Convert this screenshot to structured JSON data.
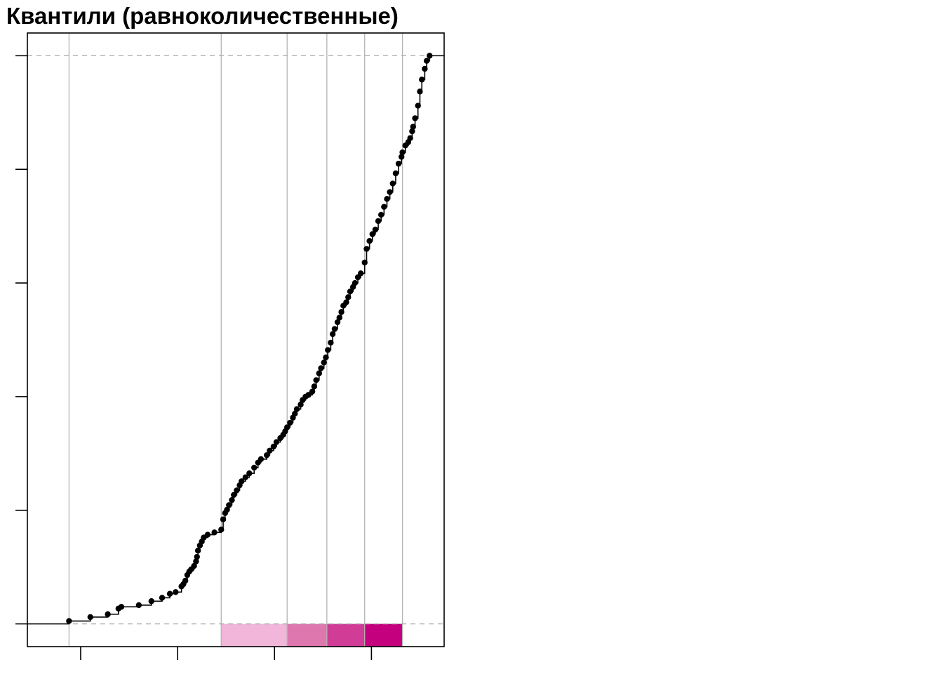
{
  "title": "Квантили (равноколичественные)",
  "chart_data": {
    "type": "scatter",
    "subtype": "empirical-cdf-with-quantile-breaks",
    "title": "Квантили (равноколичественные)",
    "xlabel": "",
    "ylabel": "",
    "x_tick_values": [
      10,
      20,
      30,
      40
    ],
    "y_tick_values": [
      0,
      0.2,
      0.4,
      0.6,
      0.8,
      1.0
    ],
    "tick_labels_visible": false,
    "xlim": [
      4.5,
      47.5
    ],
    "ylim": [
      -0.04,
      1.04
    ],
    "reference_lines_y": [
      0,
      1
    ],
    "quantile_breaks": [
      8.8,
      24.5,
      31.3,
      35.4,
      39.3,
      43.2
    ],
    "class_colors": [
      "#ffffff",
      "#f1b6da",
      "#de77ae",
      "#d03c96",
      "#c5007f"
    ],
    "curve_colors": {
      "points": "#000000",
      "line": "#000000",
      "breaks": "#b3b3b3",
      "reference": "#aaaaaa"
    },
    "points": [
      [
        8.8,
        0.005
      ],
      [
        11.0,
        0.012
      ],
      [
        12.8,
        0.017
      ],
      [
        13.9,
        0.027
      ],
      [
        14.2,
        0.03
      ],
      [
        16.0,
        0.033
      ],
      [
        17.3,
        0.04
      ],
      [
        18.4,
        0.046
      ],
      [
        19.2,
        0.053
      ],
      [
        19.8,
        0.056
      ],
      [
        20.4,
        0.066
      ],
      [
        20.6,
        0.07
      ],
      [
        20.8,
        0.076
      ],
      [
        21.0,
        0.086
      ],
      [
        21.2,
        0.092
      ],
      [
        21.4,
        0.096
      ],
      [
        21.7,
        0.102
      ],
      [
        21.9,
        0.11
      ],
      [
        22.0,
        0.118
      ],
      [
        22.1,
        0.129
      ],
      [
        22.3,
        0.138
      ],
      [
        22.5,
        0.145
      ],
      [
        22.7,
        0.152
      ],
      [
        23.1,
        0.157
      ],
      [
        23.8,
        0.161
      ],
      [
        24.5,
        0.166
      ],
      [
        24.7,
        0.184
      ],
      [
        24.9,
        0.195
      ],
      [
        25.1,
        0.201
      ],
      [
        25.3,
        0.209
      ],
      [
        25.6,
        0.218
      ],
      [
        25.8,
        0.227
      ],
      [
        26.1,
        0.235
      ],
      [
        26.4,
        0.244
      ],
      [
        26.6,
        0.251
      ],
      [
        27.0,
        0.258
      ],
      [
        27.4,
        0.265
      ],
      [
        27.9,
        0.275
      ],
      [
        28.3,
        0.284
      ],
      [
        28.6,
        0.29
      ],
      [
        29.2,
        0.297
      ],
      [
        29.5,
        0.305
      ],
      [
        29.9,
        0.312
      ],
      [
        30.2,
        0.32
      ],
      [
        30.6,
        0.327
      ],
      [
        30.9,
        0.333
      ],
      [
        31.1,
        0.339
      ],
      [
        31.3,
        0.346
      ],
      [
        31.6,
        0.354
      ],
      [
        31.9,
        0.363
      ],
      [
        32.1,
        0.37
      ],
      [
        32.3,
        0.378
      ],
      [
        32.7,
        0.386
      ],
      [
        32.9,
        0.394
      ],
      [
        33.2,
        0.4
      ],
      [
        33.5,
        0.403
      ],
      [
        33.9,
        0.409
      ],
      [
        34.1,
        0.418
      ],
      [
        34.3,
        0.429
      ],
      [
        34.6,
        0.441
      ],
      [
        34.8,
        0.45
      ],
      [
        35.1,
        0.46
      ],
      [
        35.3,
        0.469
      ],
      [
        35.5,
        0.482
      ],
      [
        35.8,
        0.495
      ],
      [
        36.0,
        0.51
      ],
      [
        36.2,
        0.519
      ],
      [
        36.5,
        0.531
      ],
      [
        36.7,
        0.539
      ],
      [
        36.9,
        0.549
      ],
      [
        37.1,
        0.56
      ],
      [
        37.4,
        0.566
      ],
      [
        37.6,
        0.575
      ],
      [
        37.8,
        0.585
      ],
      [
        38.1,
        0.593
      ],
      [
        38.3,
        0.6
      ],
      [
        38.6,
        0.61
      ],
      [
        38.9,
        0.617
      ],
      [
        39.3,
        0.636
      ],
      [
        39.5,
        0.66
      ],
      [
        39.8,
        0.674
      ],
      [
        40.1,
        0.686
      ],
      [
        40.4,
        0.694
      ],
      [
        40.7,
        0.709
      ],
      [
        41.0,
        0.72
      ],
      [
        41.3,
        0.734
      ],
      [
        41.6,
        0.748
      ],
      [
        41.9,
        0.76
      ],
      [
        42.2,
        0.775
      ],
      [
        42.5,
        0.793
      ],
      [
        42.8,
        0.81
      ],
      [
        43.1,
        0.822
      ],
      [
        43.2,
        0.83
      ],
      [
        43.5,
        0.842
      ],
      [
        43.8,
        0.848
      ],
      [
        44.0,
        0.855
      ],
      [
        44.2,
        0.867
      ],
      [
        44.3,
        0.875
      ],
      [
        44.5,
        0.89
      ],
      [
        44.8,
        0.912
      ],
      [
        45.0,
        0.937
      ],
      [
        45.2,
        0.958
      ],
      [
        45.5,
        0.977
      ],
      [
        45.7,
        0.991
      ],
      [
        46.0,
        1.0
      ]
    ]
  }
}
